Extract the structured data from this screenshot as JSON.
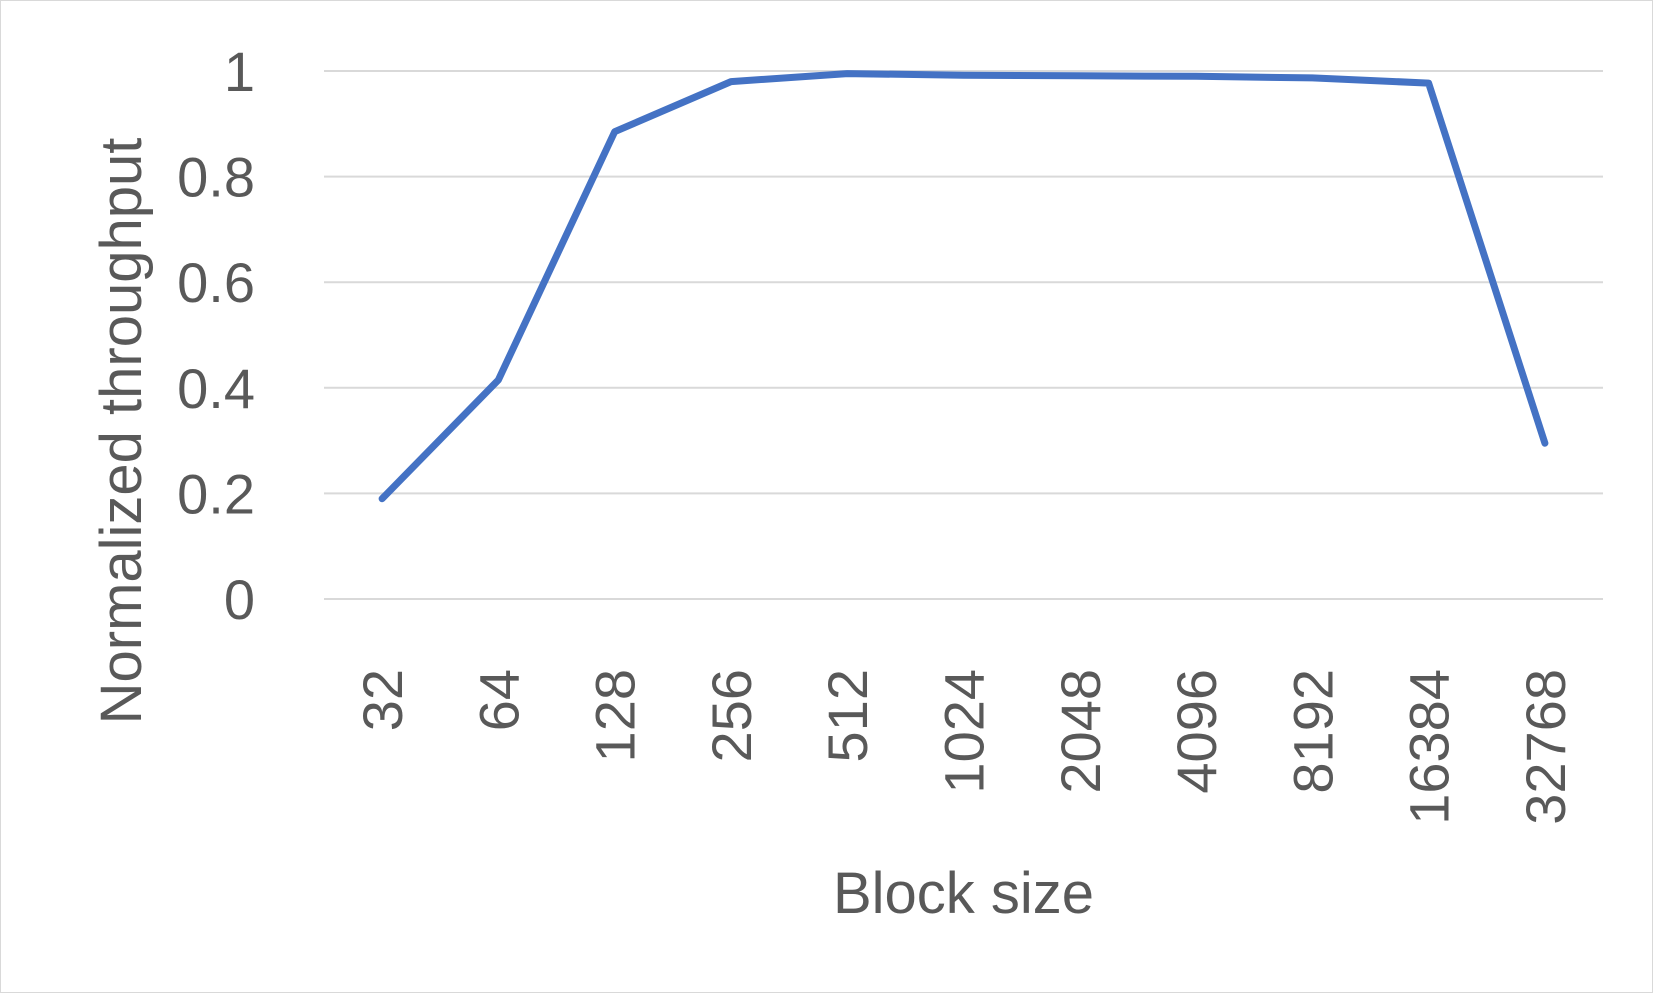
{
  "chart_data": {
    "type": "line",
    "xlabel": "Block size",
    "ylabel": "Normalized throughput",
    "categories": [
      "32",
      "64",
      "128",
      "256",
      "512",
      "1024",
      "2048",
      "4096",
      "8192",
      "16384",
      "32768"
    ],
    "series": [
      {
        "values": [
          0.19,
          0.415,
          0.885,
          0.98,
          0.995,
          0.992,
          0.991,
          0.99,
          0.987,
          0.977,
          0.295
        ],
        "color": "#4472c4"
      }
    ],
    "yticks": [
      "0",
      "0.2",
      "0.4",
      "0.6",
      "0.8",
      "1"
    ],
    "ylim": [
      0,
      1
    ],
    "grid": true,
    "legend": "none"
  }
}
